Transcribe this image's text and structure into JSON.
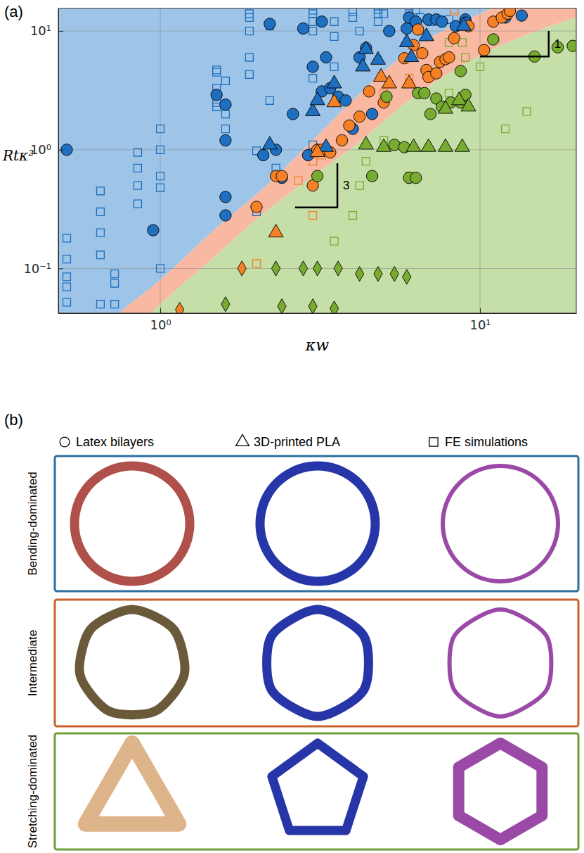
{
  "chart_data": {
    "type": "scatter",
    "title": "(a)",
    "x_label": "κw",
    "y_label": "Rtκ²",
    "log": true,
    "grid": true,
    "xlim": [
      0.48,
      20
    ],
    "ylim": [
      0.042,
      15.5
    ],
    "xticks": [
      {
        "value": 1,
        "label": "10⁰"
      },
      {
        "value": 10,
        "label": "10¹"
      }
    ],
    "yticks": [
      {
        "value": 0.1,
        "label": "10⁻¹"
      },
      {
        "value": 1,
        "label": "10⁰"
      },
      {
        "value": 10,
        "label": "10¹"
      }
    ],
    "boundaries": {
      "x": [
        0.48,
        0.75,
        1,
        1.5,
        2,
        3,
        4,
        6,
        10,
        20
      ],
      "upper": [
        0.0139,
        0.043,
        0.08,
        0.22,
        0.42,
        1.2,
        2.6,
        6.8,
        14,
        28
      ],
      "lower": [
        0.0078,
        0.024,
        0.05,
        0.13,
        0.26,
        0.6,
        1.05,
        2.6,
        6.2,
        13
      ],
      "colors": [
        "#9ec5e7",
        "#f8b8a2",
        "#c6dfa9"
      ]
    },
    "slope_guides": [
      {
        "label": "3",
        "x": [
          2.64,
          3.58,
          3.58
        ],
        "y": [
          0.327,
          0.327,
          0.77
        ]
      },
      {
        "label": "1",
        "x": [
          10,
          16.4,
          16.4
        ],
        "y": [
          6.1,
          6.1,
          10
        ]
      }
    ],
    "series": [
      {
        "color": "#1f6fc0",
        "marker": "open-square",
        "x": [
          0.51,
          0.51,
          0.51,
          0.51,
          0.51,
          0.65,
          0.65,
          0.65,
          0.65,
          0.65,
          0.72,
          0.72,
          0.72,
          0.85,
          0.85,
          0.85,
          0.85,
          1.0,
          1.0,
          1.0,
          1.0,
          1.0,
          1.5,
          1.5,
          1.5,
          1.5,
          1.5,
          1.6,
          1.6,
          1.6,
          1.9,
          1.9,
          1.9,
          1.9,
          1.9,
          2.0,
          2.0,
          2.2,
          2.2,
          2.3,
          3.0,
          3.0,
          3.0,
          3.0,
          3.0,
          3.0,
          3.5,
          3.5,
          3.5,
          4.0,
          4.0,
          4.2,
          4.8,
          4.8,
          4.8,
          5.0,
          6.0,
          6.3,
          6.5,
          7.0,
          8.0,
          9.0
        ],
        "values": [
          0.052,
          0.07,
          0.085,
          0.12,
          0.18,
          0.05,
          0.13,
          0.2,
          0.3,
          0.45,
          0.05,
          0.075,
          0.09,
          0.35,
          0.5,
          0.7,
          0.95,
          0.1,
          0.48,
          0.6,
          1.0,
          1.5,
          2.3,
          2.5,
          3.3,
          4.5,
          4.7,
          1.5,
          2.0,
          3.8,
          4.3,
          6,
          10,
          13,
          14,
          0.3,
          0.98,
          2.6,
          11,
          0.7,
          1.1,
          4,
          10,
          12,
          14,
          15,
          5,
          9,
          12,
          13,
          14.5,
          10,
          12,
          14,
          15.2,
          14,
          14,
          15,
          13,
          12,
          12.5,
          12
        ]
      },
      {
        "color": "#f58025",
        "marker": "open-square",
        "x": [
          2.0,
          2.7,
          3.0,
          3.0,
          3.2,
          5.0,
          6.0,
          7.0,
          8.3,
          8.3
        ],
        "values": [
          0.11,
          0.55,
          0.28,
          0.8,
          0.9,
          3.0,
          4.0,
          4.5,
          14.5,
          15.2
        ]
      },
      {
        "color": "#77ac30",
        "marker": "open-square",
        "x": [
          3.5,
          4.0,
          4.2,
          4.4,
          5.0,
          6.0,
          7.0,
          7.0,
          8.0,
          8.0,
          8.8,
          9.0,
          10,
          12,
          14
        ],
        "values": [
          0.17,
          0.28,
          0.5,
          0.8,
          1.2,
          0.6,
          2.0,
          4.5,
          3,
          8,
          8,
          6,
          5,
          1.5,
          2.1
        ]
      },
      {
        "color": "#1f6fc0",
        "marker": "circle",
        "x": [
          0.51,
          0.95,
          1.5,
          1.6,
          1.6,
          1.6,
          1.6,
          2.1,
          2.2,
          2.3,
          2.4,
          2.6,
          2.8,
          2.9,
          3.0,
          3.2,
          3.2,
          3.3,
          3.4,
          3.6,
          3.8,
          4.0,
          4.2,
          4.4,
          4.6,
          5.2,
          5.9,
          6.0,
          6.3,
          6.9,
          7.3,
          7.6,
          8.4,
          9.0,
          9.0,
          12,
          13.5
        ],
        "values": [
          1.0,
          0.21,
          2.9,
          2.4,
          1.2,
          0.4,
          0.28,
          0.9,
          11.5,
          1.0,
          0.58,
          2.0,
          10.5,
          0.9,
          5.0,
          12,
          3.1,
          6.0,
          3.3,
          2.8,
          2.6,
          1.5,
          6.0,
          7.2,
          2.0,
          10,
          10.5,
          13,
          12,
          12.5,
          12.5,
          12,
          11,
          12.5,
          11.8,
          13,
          13.5
        ]
      },
      {
        "color": "#f58025",
        "marker": "circle",
        "x": [
          2.0,
          2.3,
          2.4,
          3.0,
          3.1,
          3.2,
          3.4,
          3.7,
          3.9,
          4.2,
          4.5,
          5.0,
          5.8,
          6.2,
          6.4,
          6.6,
          6.8,
          6.9,
          7.3,
          7.5,
          7.8,
          8.0,
          8.3,
          9.2,
          10.3,
          11,
          11.7,
          12.2,
          12.4
        ],
        "values": [
          0.33,
          0.6,
          0.6,
          0.5,
          1.0,
          1.0,
          0.95,
          1.2,
          1.6,
          1.9,
          3.1,
          2.5,
          5.9,
          7.6,
          10.3,
          6.5,
          4.7,
          4.1,
          4.4,
          5.5,
          5.8,
          6.0,
          8.7,
          11,
          6.9,
          12,
          13,
          14,
          14.8
        ]
      },
      {
        "color": "#77ac30",
        "marker": "circle",
        "x": [
          3.1,
          4.6,
          5.1,
          5.4,
          5.8,
          6.0,
          6.3,
          6.4,
          6.7,
          7.0,
          7.3,
          7.6,
          8.1,
          8.7,
          8.7,
          9.0,
          11,
          14.8,
          17.5,
          19.5
        ],
        "values": [
          0.6,
          0.6,
          2.8,
          1.1,
          1.05,
          0.58,
          0.58,
          3.0,
          3.0,
          2.0,
          2.7,
          2.3,
          2.5,
          2.5,
          4.6,
          2.9,
          8.5,
          6.1,
          7.3,
          7.5
        ]
      },
      {
        "color": "#1f6fc0",
        "marker": "triangle",
        "x": [
          2.2,
          3.0,
          3.1,
          3.3,
          3.5,
          4.4,
          4.3,
          4.8,
          5.9,
          6.1,
          6.8,
          8.9
        ],
        "values": [
          1.1,
          2.1,
          2.6,
          1.05,
          3.6,
          7.0,
          5.0,
          5.7,
          8.0,
          6.0,
          9.0,
          11
        ]
      },
      {
        "color": "#f58025",
        "marker": "triangle",
        "x": [
          2.3,
          3.1,
          3.5,
          4.9,
          5.2,
          6.0
        ],
        "values": [
          0.2,
          0.95,
          2.5,
          4.1,
          3.6,
          3.6
        ]
      },
      {
        "color": "#77ac30",
        "marker": "triangle",
        "x": [
          4.4,
          5.0,
          6.2,
          6.9,
          7.8,
          8.8,
          7.8,
          8.6,
          9.2
        ],
        "values": [
          1.1,
          1.05,
          1.05,
          1.05,
          1.05,
          1.05,
          2.2,
          2.6,
          2.3
        ]
      },
      {
        "color": "#f58025",
        "marker": "diamond",
        "x": [
          1.15,
          1.8
        ],
        "values": [
          0.045,
          0.1
        ]
      },
      {
        "color": "#77ac30",
        "marker": "diamond",
        "x": [
          2.3,
          2.8,
          3.1,
          3.6,
          4.2,
          4.8,
          5.4,
          5.9,
          1.6,
          2.4,
          3.0,
          3.5
        ],
        "values": [
          0.1,
          0.1,
          0.1,
          0.1,
          0.09,
          0.09,
          0.09,
          0.085,
          0.05,
          0.048,
          0.048,
          0.046
        ]
      }
    ]
  },
  "panel_b": {
    "label": "(b)",
    "key": [
      {
        "marker": "circle",
        "text": "Latex bilayers"
      },
      {
        "marker": "triangle",
        "text": "3D-printed PLA"
      },
      {
        "marker": "open-square",
        "text": "FE simulations"
      }
    ],
    "rows": [
      {
        "label": "Bending-dominated",
        "color": "#2e6f9e"
      },
      {
        "label": "Intermediate",
        "color": "#c9622a"
      },
      {
        "label": "Stretching-dominated",
        "color": "#6e9e3c"
      }
    ]
  }
}
